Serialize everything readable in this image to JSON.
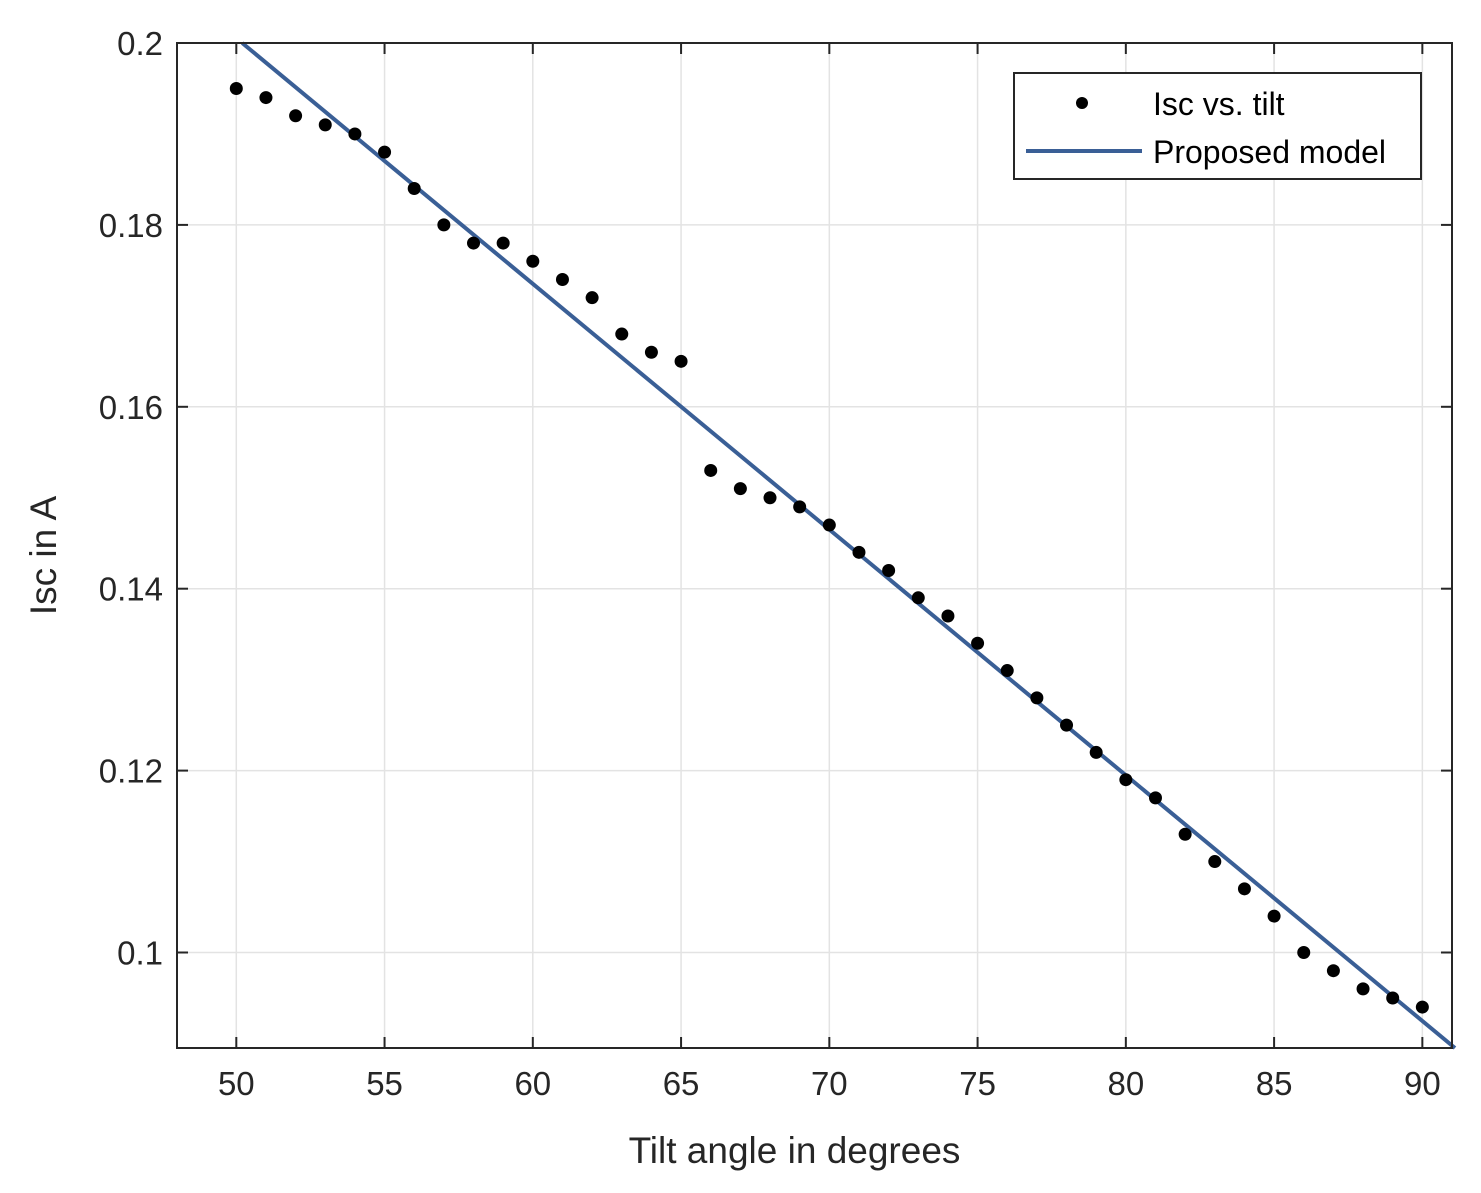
{
  "chart_data": {
    "type": "scatter",
    "xlabel": "Tilt angle in degrees",
    "ylabel": "Isc in A",
    "xlim": [
      48,
      91
    ],
    "ylim": [
      0.0895,
      0.2
    ],
    "xticks": [
      50,
      55,
      60,
      65,
      70,
      75,
      80,
      85,
      90
    ],
    "xtick_labels": [
      "50",
      "55",
      "60",
      "65",
      "70",
      "75",
      "80",
      "85",
      "90"
    ],
    "yticks": [
      0.1,
      0.12,
      0.14,
      0.16,
      0.18,
      0.2
    ],
    "ytick_labels": [
      "0.1",
      "0.12",
      "0.14",
      "0.16",
      "0.18",
      "0.2"
    ],
    "grid": true,
    "legend_position": "top-right",
    "series": [
      {
        "name": "Isc vs. tilt",
        "kind": "scatter",
        "color": "#000000",
        "x": [
          50,
          51,
          52,
          53,
          54,
          55,
          56,
          57,
          58,
          59,
          60,
          61,
          62,
          63,
          64,
          65,
          66,
          67,
          68,
          69,
          70,
          71,
          72,
          73,
          74,
          75,
          76,
          77,
          78,
          79,
          80,
          81,
          82,
          83,
          84,
          85,
          86,
          87,
          88,
          89,
          90
        ],
        "y": [
          0.195,
          0.194,
          0.192,
          0.191,
          0.19,
          0.188,
          0.184,
          0.18,
          0.178,
          0.178,
          0.176,
          0.174,
          0.172,
          0.168,
          0.166,
          0.165,
          0.153,
          0.151,
          0.15,
          0.149,
          0.147,
          0.144,
          0.142,
          0.139,
          0.137,
          0.134,
          0.131,
          0.128,
          0.125,
          0.122,
          0.119,
          0.117,
          0.113,
          0.11,
          0.107,
          0.104,
          0.1,
          0.098,
          0.096,
          0.095,
          0.094
        ]
      },
      {
        "name": "Proposed model",
        "kind": "line",
        "color": "#3a5f96",
        "x": [
          50.2,
          91.1
        ],
        "y": [
          0.2,
          0.0895
        ]
      }
    ]
  }
}
